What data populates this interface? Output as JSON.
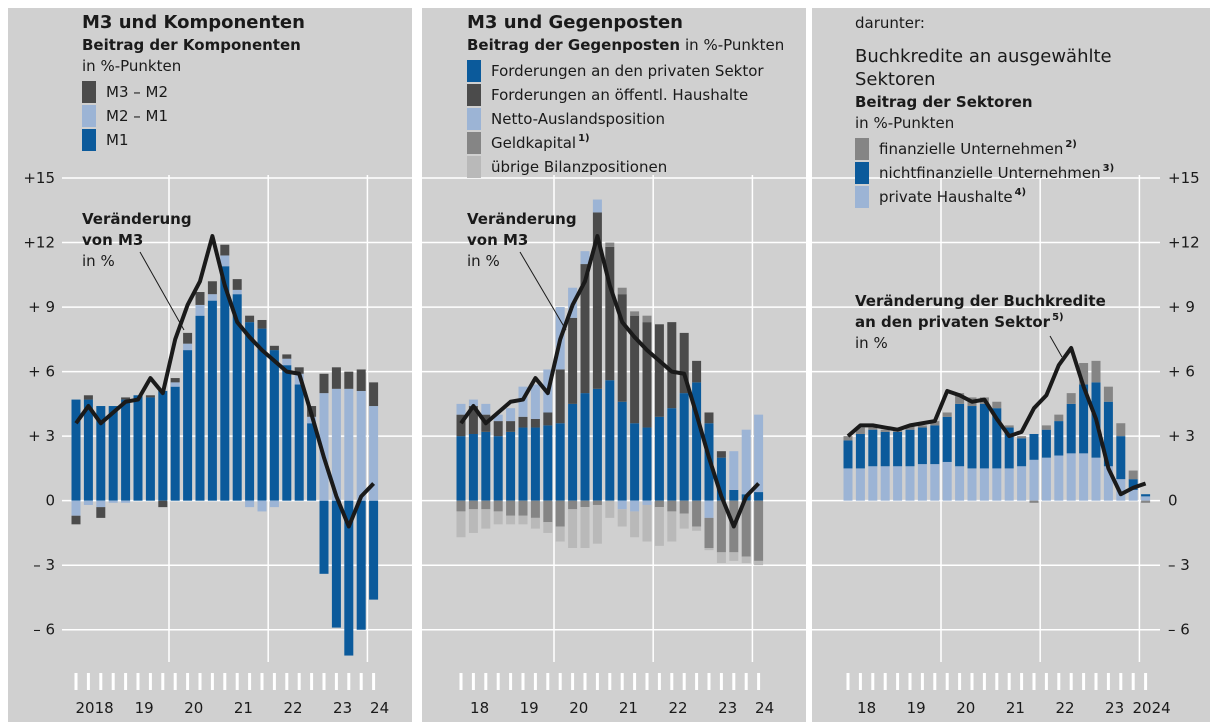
{
  "chart_data": [
    {
      "type": "bar",
      "stacked": true,
      "stack_from": "last",
      "title": "M3 und Komponenten",
      "subtitle": "Beitrag der Komponenten",
      "unit": "in %-Punkten",
      "categories": [
        "2018",
        null,
        null,
        null,
        "19",
        null,
        null,
        null,
        "20",
        null,
        null,
        null,
        "21",
        null,
        null,
        null,
        "22",
        null,
        null,
        null,
        "23",
        null,
        null,
        null,
        "24"
      ],
      "series": [
        {
          "name": "M3 – M2",
          "color": "#4b4b4b",
          "values": [
            -0.4,
            0.2,
            -0.5,
            0,
            0.1,
            0,
            0.1,
            -0.3,
            0.2,
            0.5,
            0.6,
            0.6,
            0.5,
            0.5,
            0.3,
            0.4,
            0.2,
            0.2,
            0.3,
            0.5,
            0.9,
            1.0,
            0.8,
            1.0,
            1.1
          ]
        },
        {
          "name": "M2 – M1",
          "color": "#9cb4d5",
          "values": [
            -0.7,
            -0.2,
            -0.3,
            -0.1,
            -0.1,
            0,
            0,
            0,
            0.2,
            0.3,
            0.5,
            0.3,
            0.5,
            0.2,
            -0.3,
            -0.5,
            -0.3,
            0.3,
            0.5,
            0.3,
            5.0,
            5.2,
            5.2,
            5.1,
            4.4
          ]
        },
        {
          "name": "M1",
          "color": "#0b5a9b",
          "values": [
            4.7,
            4.7,
            4.4,
            4.4,
            4.7,
            4.9,
            4.8,
            5.1,
            5.3,
            7.0,
            8.6,
            9.3,
            10.9,
            9.6,
            8.3,
            8.0,
            7.0,
            6.3,
            5.4,
            3.6,
            -3.4,
            -5.9,
            -7.2,
            -6.0,
            -4.6
          ]
        }
      ],
      "line": {
        "label": [
          "Veränderung",
          "von M3",
          "in %"
        ],
        "color": "#1a1a1a",
        "values": [
          3.6,
          4.4,
          3.6,
          4.1,
          4.6,
          4.7,
          5.7,
          5.0,
          7.5,
          9.1,
          10.2,
          12.3,
          10.0,
          8.3,
          7.6,
          7.0,
          6.5,
          6.0,
          5.9,
          4.0,
          2.0,
          0.2,
          -1.2,
          0.2,
          0.8
        ]
      },
      "ylim": [
        -7.5,
        17
      ],
      "yaxis_side": "left",
      "yticks": [
        {
          "value": -6,
          "label": "– 6"
        },
        {
          "value": -3,
          "label": "– 3"
        },
        0,
        {
          "value": 3,
          "label": "+ 3"
        },
        {
          "value": 6,
          "label": "+ 6"
        },
        {
          "value": 9,
          "label": "+ 9"
        },
        {
          "value": 12,
          "label": "+12"
        },
        {
          "value": 15,
          "label": "+15"
        }
      ]
    },
    {
      "type": "bar",
      "stacked": true,
      "stack_from": "first",
      "title": "M3 und Gegenposten",
      "subtitle": "Beitrag der Gegenposten",
      "unit": "in %-Punkten",
      "categories": [
        "18",
        null,
        null,
        null,
        "19",
        null,
        null,
        null,
        "20",
        null,
        null,
        null,
        "21",
        null,
        null,
        null,
        "22",
        null,
        null,
        null,
        "23",
        null,
        null,
        null,
        "24"
      ],
      "series": [
        {
          "name": "Forderungen an den privaten Sektor",
          "color": "#0b5a9b",
          "values": [
            3.0,
            3.1,
            3.2,
            3.0,
            3.2,
            3.4,
            3.4,
            3.5,
            3.6,
            4.5,
            5.0,
            5.2,
            5.6,
            4.6,
            3.6,
            3.4,
            3.9,
            4.3,
            5.0,
            5.5,
            3.6,
            2.0,
            0.5,
            0.3,
            0.4
          ]
        },
        {
          "name": "Forderungen an öffentl. Haushalte",
          "color": "#4b4b4b",
          "values": [
            1.0,
            1.3,
            0.8,
            0.7,
            0.5,
            0.5,
            0.4,
            0.6,
            2.5,
            4.0,
            6.0,
            8.2,
            6.2,
            5.0,
            5.0,
            4.9,
            4.3,
            4.0,
            2.8,
            1.0,
            0.5,
            0.3,
            0,
            0,
            0
          ]
        },
        {
          "name": "Netto-Auslandsposition",
          "color": "#9cb4d5",
          "values": [
            0.5,
            0.3,
            0.5,
            0.3,
            0.6,
            1.4,
            1.6,
            2.0,
            2.9,
            1.4,
            0.6,
            0.6,
            0,
            -0.4,
            -0.5,
            -0.2,
            0,
            0,
            0,
            0,
            -0.8,
            0,
            1.8,
            3.0,
            3.6
          ]
        },
        {
          "name": "Geldkapital",
          "note": "1)",
          "color": "#858585",
          "values": [
            -0.5,
            -0.4,
            -0.4,
            -0.5,
            -0.7,
            -0.7,
            -0.8,
            -1.0,
            -1.2,
            -0.4,
            -0.3,
            -0.2,
            0.2,
            0.3,
            0.2,
            0.3,
            -0.3,
            -0.5,
            -0.6,
            -1.2,
            -1.4,
            -2.4,
            -2.4,
            -2.6,
            -2.8
          ]
        },
        {
          "name": "übrige Bilanzpositionen",
          "color": "#b9b9b9",
          "values": [
            -1.2,
            -1.1,
            -0.9,
            -0.6,
            -0.4,
            -0.4,
            -0.5,
            -0.5,
            -0.7,
            -1.8,
            -1.9,
            -1.8,
            -0.8,
            -0.8,
            -1.2,
            -1.7,
            -1.8,
            -1.4,
            -0.7,
            -0.2,
            -0.1,
            -0.5,
            -0.4,
            -0.3,
            -0.2
          ]
        }
      ],
      "line": {
        "label": [
          "Veränderung",
          "von M3",
          "in %"
        ],
        "color": "#1a1a1a",
        "values": [
          3.6,
          4.4,
          3.6,
          4.1,
          4.6,
          4.7,
          5.7,
          5.0,
          7.5,
          9.1,
          10.2,
          12.3,
          10.0,
          8.3,
          7.6,
          7.0,
          6.5,
          6.0,
          5.9,
          4.0,
          2.0,
          0.2,
          -1.2,
          0.2,
          0.8
        ]
      },
      "ylim": [
        -7.5,
        17
      ],
      "yticks": [
        -6,
        -3,
        0,
        3,
        6,
        9,
        12,
        15
      ]
    },
    {
      "type": "bar",
      "stacked": true,
      "stack_from": "last",
      "kicker": "darunter:",
      "title": [
        "Buchkredite an ausgewählte",
        "Sektoren"
      ],
      "subtitle": "Beitrag der Sektoren",
      "unit": "in %-Punkten",
      "categories": [
        "18",
        null,
        null,
        null,
        "19",
        null,
        null,
        null,
        "20",
        null,
        null,
        null,
        "21",
        null,
        null,
        null,
        "22",
        null,
        null,
        null,
        "23",
        null,
        null,
        null,
        "2024"
      ],
      "series": [
        {
          "name": "finanzielle Unternehmen",
          "note": "2)",
          "color": "#858585",
          "values": [
            0.2,
            0.3,
            0.1,
            0.1,
            0.1,
            0.2,
            0.1,
            0.2,
            0.2,
            0.5,
            0.4,
            0.3,
            0.3,
            0.1,
            0.1,
            -0.1,
            0.2,
            0.3,
            0.5,
            1.0,
            1.0,
            0.7,
            0.6,
            0.4,
            -0.1
          ]
        },
        {
          "name": "nichtfinanzielle Unternehmen",
          "note": "3)",
          "color": "#0b5a9b",
          "values": [
            1.3,
            1.6,
            1.7,
            1.6,
            1.6,
            1.7,
            1.7,
            1.8,
            2.1,
            2.9,
            2.9,
            3.0,
            2.8,
            1.9,
            1.3,
            1.2,
            1.3,
            1.6,
            2.3,
            3.2,
            3.5,
            3.0,
            2.0,
            0.5,
            0.1
          ]
        },
        {
          "name": "private Haushalte",
          "note": "4)",
          "color": "#9cb4d5",
          "values": [
            1.5,
            1.5,
            1.6,
            1.6,
            1.6,
            1.6,
            1.7,
            1.7,
            1.8,
            1.6,
            1.5,
            1.5,
            1.5,
            1.5,
            1.6,
            1.9,
            2.0,
            2.1,
            2.2,
            2.2,
            2.0,
            1.6,
            1.0,
            0.5,
            0.2
          ]
        }
      ],
      "line": {
        "label": [
          "Veränderung der Buchkredite",
          "an den privaten Sektor",
          "in %"
        ],
        "note": "5)",
        "color": "#1a1a1a",
        "values": [
          3.0,
          3.5,
          3.5,
          3.4,
          3.3,
          3.5,
          3.6,
          3.7,
          5.1,
          4.9,
          4.6,
          4.7,
          3.8,
          3.0,
          3.2,
          4.3,
          4.9,
          6.3,
          7.1,
          5.3,
          3.8,
          1.5,
          0.3,
          0.6,
          0.8
        ]
      },
      "ylim": [
        -7.5,
        17
      ],
      "yaxis_side": "right",
      "yticks": [
        {
          "value": -6,
          "label": "– 6"
        },
        {
          "value": -3,
          "label": "– 3"
        },
        0,
        {
          "value": 3,
          "label": "+ 3"
        },
        {
          "value": 6,
          "label": "+ 6"
        },
        {
          "value": 9,
          "label": "+ 9"
        },
        {
          "value": 12,
          "label": "+12"
        },
        {
          "value": 15,
          "label": "+15"
        }
      ]
    }
  ]
}
